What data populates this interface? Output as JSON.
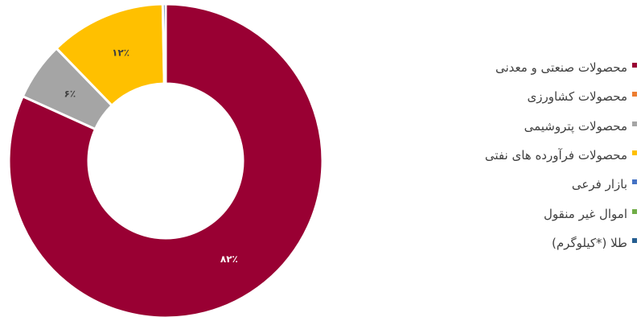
{
  "chart_data": {
    "type": "pie",
    "donut": true,
    "categories": [
      "محصولات صنعتی و معدنی",
      "محصولات کشاورزی",
      "محصولات پتروشیمی",
      "محصولات فرآورده های نفتی",
      "بازار فرعی",
      "اموال غیر منقول",
      "طلا (*کیلوگرم)"
    ],
    "values": [
      82,
      0,
      6,
      12,
      0,
      0,
      0.3
    ],
    "data_labels": [
      "۸۲٪",
      "",
      "۶٪",
      "۱۲٪",
      "",
      "",
      ""
    ],
    "colors": [
      "#990033",
      "#ED7D31",
      "#A5A5A5",
      "#FFC000",
      "#4472C4",
      "#70AD47",
      "#255E91"
    ],
    "legend_position": "right"
  }
}
